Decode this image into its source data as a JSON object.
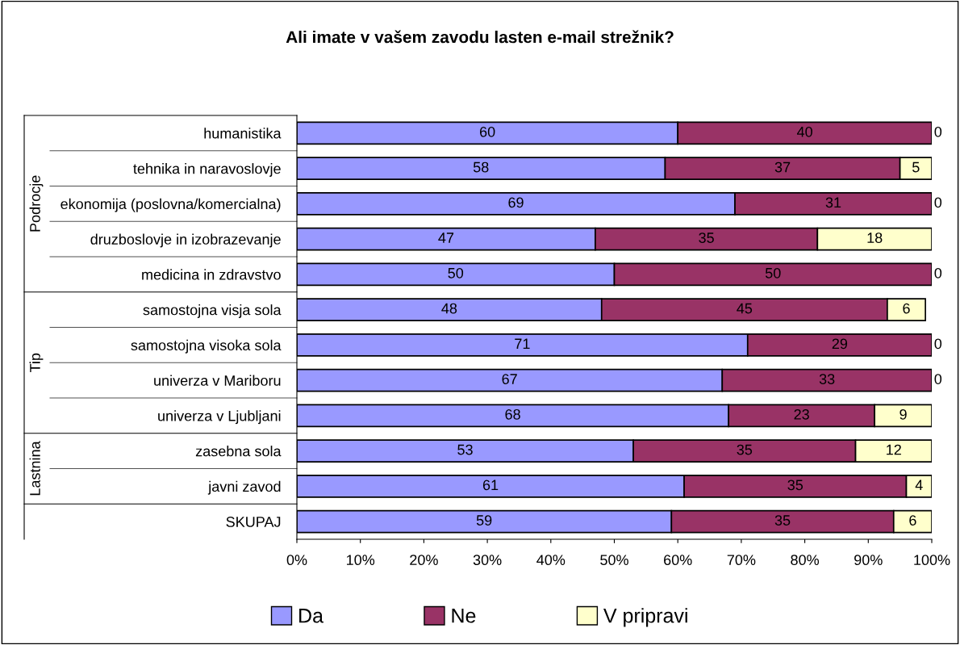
{
  "chart_data": {
    "type": "bar",
    "orientation": "horizontal",
    "stacked": true,
    "title": "Ali imate v vašem zavodu lasten e-mail strežnik?",
    "categories": [
      "humanistika",
      "tehnika in naravoslovje",
      "ekonomija (poslovna/komercialna)",
      "druzboslovje in izobrazevanje",
      "medicina in zdravstvo",
      "samostojna visja sola",
      "samostojna visoka sola",
      "univerza v Mariboru",
      "univerza v Ljubljani",
      "zasebna sola",
      "javni zavod",
      "SKUPAJ"
    ],
    "series": [
      {
        "name": "Da",
        "color": "#9999ff",
        "values": [
          60,
          58,
          69,
          47,
          50,
          48,
          71,
          67,
          68,
          53,
          61,
          59
        ]
      },
      {
        "name": "Ne",
        "color": "#993366",
        "values": [
          40,
          37,
          31,
          35,
          50,
          45,
          29,
          33,
          23,
          35,
          35,
          35
        ]
      },
      {
        "name": "V pripravi",
        "color": "#ffffcc",
        "values": [
          0,
          5,
          0,
          18,
          0,
          6,
          0,
          0,
          9,
          12,
          4,
          6
        ]
      }
    ],
    "annotations": [
      "Podrocje",
      "Tip",
      "Lastnina"
    ],
    "xlim": [
      0,
      100
    ],
    "xticks": [
      {
        "value": 0,
        "label": "0%"
      },
      {
        "value": 10,
        "label": "10%"
      },
      {
        "value": 20,
        "label": "20%"
      },
      {
        "value": 30,
        "label": "30%"
      },
      {
        "value": 40,
        "label": "40%"
      },
      {
        "value": 50,
        "label": "50%"
      },
      {
        "value": 60,
        "label": "60%"
      },
      {
        "value": 70,
        "label": "70%"
      },
      {
        "value": 80,
        "label": "80%"
      },
      {
        "value": 90,
        "label": "90%"
      },
      {
        "value": 100,
        "label": "100%"
      }
    ],
    "data_labels": true,
    "grid": false,
    "legend": "bottom"
  }
}
